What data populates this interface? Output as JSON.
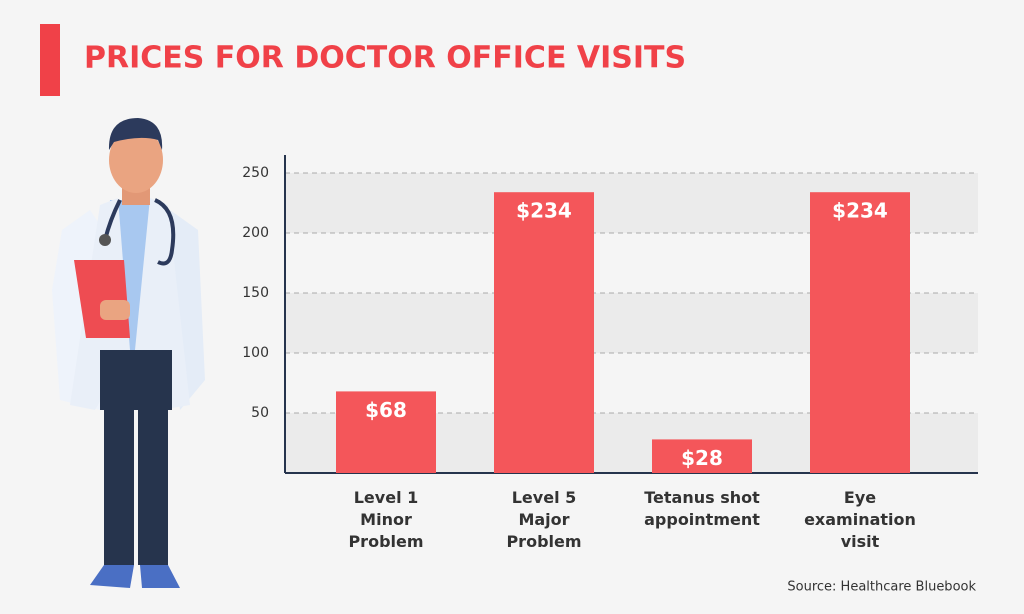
{
  "chart_data": {
    "type": "bar",
    "title": "PRICES FOR DOCTOR OFFICE VISITS",
    "categories": [
      "Level 1\nMinor\nProblem",
      "Level 5\nMajor\nProblem",
      "Tetanus shot\nappointment",
      "Eye\nexamination\nvisit"
    ],
    "values": [
      68,
      234,
      28,
      234
    ],
    "value_labels": [
      "$68",
      "$234",
      "$28",
      "$234"
    ],
    "color": "#f4565a",
    "ylim": [
      0,
      265
    ],
    "yticks": [
      50,
      100,
      150,
      200,
      250
    ],
    "grid": true,
    "source": "Source: Healthcare Bluebook"
  }
}
